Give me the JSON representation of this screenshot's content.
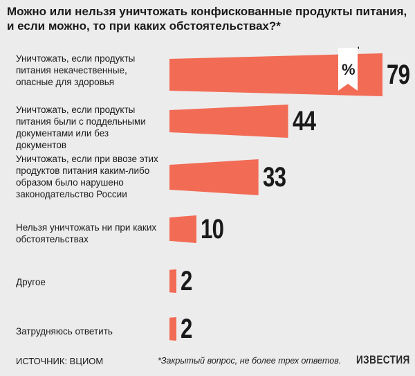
{
  "title": "Можно или нельзя уничтожать конфискованные продукты питания, и если можно, то при каких обстоятельствах?*",
  "percent_label": "%",
  "source": "ИСТОЧНИК: ВЦИОМ",
  "footnote": "*Закрытый вопрос, не более трех ответов.",
  "logo": "ИЗВЕСТИЯ",
  "colors": {
    "bar": "#f26b55",
    "background": "#ececec"
  },
  "chart_data": {
    "type": "bar",
    "orientation": "horizontal",
    "title": "Можно или нельзя уничтожать конфискованные продукты питания, и если можно, то при каких обстоятельствах?*",
    "unit": "%",
    "categories": [
      "Уничтожать, если продукты питания некачественные, опасные для здоровья",
      "Уничтожать, если продукты питания были с поддельными документами или без документов",
      "Уничтожать, если при ввозе этих продуктов питания каким-либо образом было нарушено законодательство России",
      "Нельзя уничтожать ни при каких обстоятельствах",
      "Другое",
      "Затрудняюсь ответить"
    ],
    "values": [
      79,
      44,
      33,
      10,
      2,
      2
    ],
    "value_labels": [
      "79",
      "44",
      "33",
      "10",
      "2",
      "2"
    ],
    "xlim": [
      0,
      79
    ]
  }
}
